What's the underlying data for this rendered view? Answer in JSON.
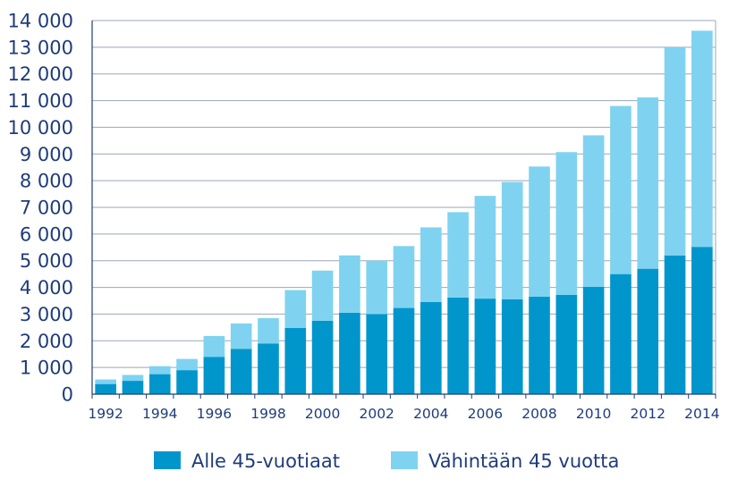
{
  "chart_data": {
    "type": "bar",
    "stacked": true,
    "title": "",
    "xlabel": "",
    "ylabel": "",
    "ylim": [
      0,
      14000
    ],
    "y_ticks": [
      0,
      1000,
      2000,
      3000,
      4000,
      5000,
      6000,
      7000,
      8000,
      9000,
      10000,
      11000,
      12000,
      13000,
      14000
    ],
    "y_tick_labels": [
      "0",
      "1 000",
      "2 000",
      "3 000",
      "4 000",
      "5 000",
      "6 000",
      "7 000",
      "8 000",
      "9 000",
      "10 000",
      "11 000",
      "12 000",
      "13 000",
      "14 000"
    ],
    "categories": [
      "1992",
      "1993",
      "1994",
      "1995",
      "1996",
      "1997",
      "1998",
      "1999",
      "2000",
      "2001",
      "2002",
      "2003",
      "2004",
      "2005",
      "2006",
      "2007",
      "2008",
      "2009",
      "2010",
      "2011",
      "2012",
      "2013",
      "2014"
    ],
    "x_tick_labels": [
      "1992",
      "",
      "1994",
      "",
      "1996",
      "",
      "1998",
      "",
      "2000",
      "",
      "2002",
      "",
      "2004",
      "",
      "2006",
      "",
      "2008",
      "",
      "2010",
      "",
      "2012",
      "",
      "2014"
    ],
    "grid": true,
    "legend_position": "bottom",
    "series": [
      {
        "name": "Alle 45-vuotiaat",
        "color": "#0096cc",
        "values": [
          380,
          500,
          750,
          900,
          1400,
          1700,
          1900,
          2480,
          2750,
          3050,
          3000,
          3230,
          3450,
          3620,
          3580,
          3550,
          3650,
          3720,
          4020,
          4500,
          4700,
          5200,
          5520
        ]
      },
      {
        "name": "Vähintään 45 vuotta",
        "color": "#7fd3f0",
        "values": [
          170,
          220,
          300,
          420,
          780,
          950,
          950,
          1420,
          1880,
          2150,
          2000,
          2320,
          2800,
          3200,
          3850,
          4400,
          4880,
          5350,
          5680,
          6300,
          6420,
          7800,
          8100
        ]
      }
    ]
  }
}
